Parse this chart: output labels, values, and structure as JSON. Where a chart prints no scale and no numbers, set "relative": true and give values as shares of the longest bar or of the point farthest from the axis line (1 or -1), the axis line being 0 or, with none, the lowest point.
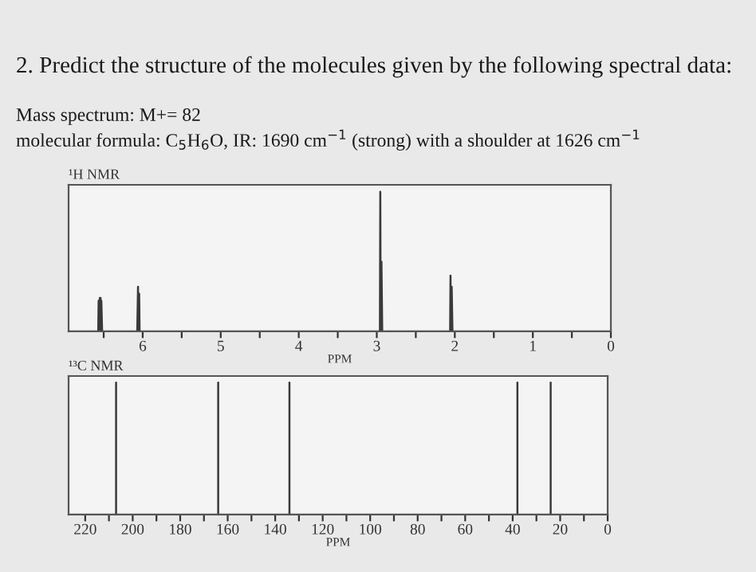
{
  "chart_data": [
    {
      "type": "line",
      "title": "¹H NMR",
      "xlabel": "PPM",
      "relative": true,
      "grid": false,
      "legend": false,
      "marker": "none",
      "line_style": "solid",
      "annotations": [
        "2. Predict the structure of the molecules given by the following spectral data:",
        "Mass spectrum: M+= 82",
        "molecular formula: C$_{5}$H$_{6}$O, IR: 1690 cm$^{−1}$ (strong) with a shoulder at 1626 cm$^{−1}$"
      ],
      "xlim": [
        6.95,
        0
      ],
      "xticks": [
        {
          "value": 6.5,
          "label": null
        },
        6,
        {
          "value": 5.5,
          "label": null
        },
        5,
        {
          "value": 4.5,
          "label": null
        },
        4,
        {
          "value": 3.5,
          "label": null
        },
        3,
        {
          "value": 2.5,
          "label": null
        },
        2,
        {
          "value": 1.5,
          "label": null
        },
        1,
        {
          "value": 0.5,
          "label": null
        },
        0
      ],
      "series": [
        {
          "color": "#3a3a3a",
          "x": [
            6.95,
            6.57,
            6.565,
            6.56,
            6.55,
            6.545,
            6.54,
            6.535,
            6.53,
            6.52,
            6.07,
            6.06,
            6.055,
            6.05,
            6.045,
            6.04,
            2.96,
            2.955,
            2.95,
            2.945,
            2.94,
            2.93,
            2.06,
            2.055,
            2.05,
            2.045,
            2.04,
            2.03,
            0
          ],
          "values": [
            0,
            0,
            0.22,
            0,
            0.24,
            0,
            0.24,
            0,
            0.22,
            0,
            0,
            0.32,
            0,
            0,
            0.27,
            0,
            0,
            1,
            0,
            0,
            0.5,
            0,
            0,
            0.4,
            0,
            0,
            0.32,
            0,
            0
          ]
        }
      ]
    },
    {
      "type": "line",
      "title": "¹³C NMR",
      "xlabel": "PPM",
      "relative": true,
      "grid": false,
      "legend": false,
      "marker": "none",
      "line_style": "solid",
      "xlim": [
        227,
        0
      ],
      "xticks": [
        220,
        {
          "value": 210,
          "label": null
        },
        200,
        {
          "value": 190,
          "label": null
        },
        180,
        {
          "value": 170,
          "label": null
        },
        160,
        {
          "value": 150,
          "label": null
        },
        140,
        {
          "value": 130,
          "label": null
        },
        120,
        {
          "value": 110,
          "label": null
        },
        100,
        {
          "value": 90,
          "label": null
        },
        80,
        {
          "value": 70,
          "label": null
        },
        60,
        {
          "value": 50,
          "label": null
        },
        40,
        {
          "value": 30,
          "label": null
        },
        20,
        {
          "value": 10,
          "label": null
        },
        0
      ],
      "series": [
        {
          "color": "#3a3a3a",
          "x": [
            227,
            207,
            207,
            207,
            164,
            164,
            164,
            134,
            134,
            134,
            38,
            38,
            38,
            24,
            24,
            24,
            0
          ],
          "values": [
            0,
            0,
            1,
            0,
            0,
            1,
            0,
            0,
            1,
            0,
            0,
            1,
            0,
            0,
            1,
            0,
            0
          ]
        }
      ]
    }
  ]
}
